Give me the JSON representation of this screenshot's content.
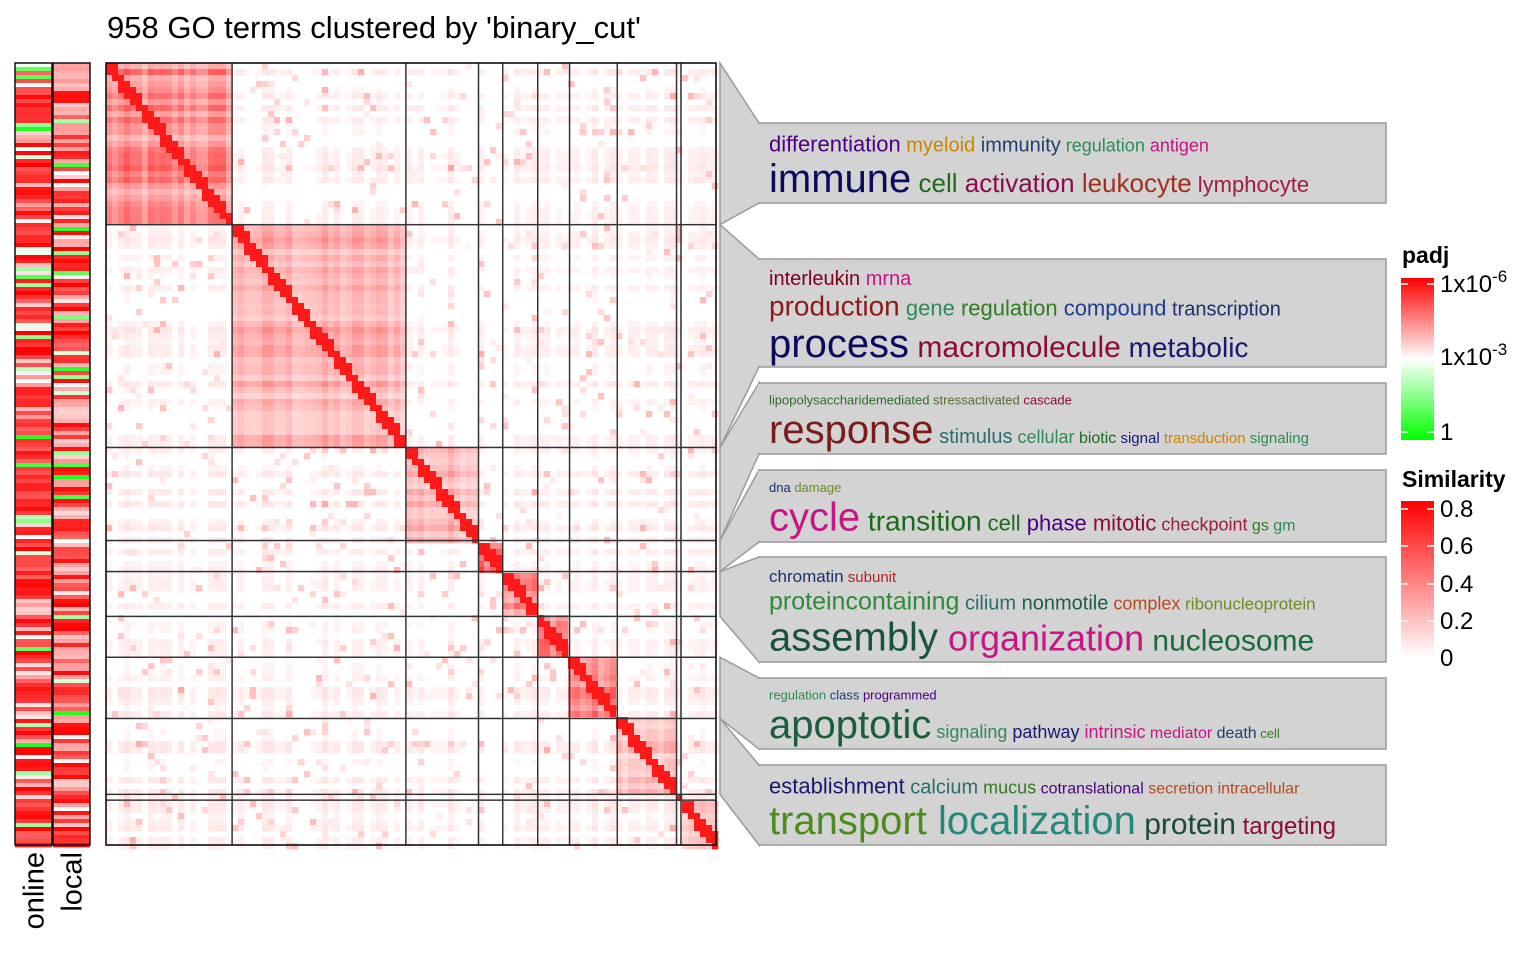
{
  "title": "958 GO terms clustered by 'binary_cut'",
  "colors": {
    "similarity_high": "#ff0000",
    "similarity_low": "#ffffff",
    "padj_high": "#ff0000",
    "padj_mid": "#ffffff",
    "padj_low": "#00ff00",
    "panel_fill": "#d3d3d3",
    "panel_stroke": "#9a9a9a",
    "block_border": "#333333"
  },
  "chart_data": {
    "type": "heatmap",
    "n_terms": 958,
    "clusters": [
      {
        "id": 1,
        "size": 198,
        "mean_within_similarity": 0.55
      },
      {
        "id": 2,
        "size": 273,
        "mean_within_similarity": 0.38
      },
      {
        "id": 3,
        "size": 114,
        "mean_within_similarity": 0.35
      },
      {
        "id": 4,
        "size": 38,
        "mean_within_similarity": 0.8
      },
      {
        "id": 5,
        "size": 55,
        "mean_within_similarity": 0.6
      },
      {
        "id": 6,
        "size": 50,
        "mean_within_similarity": 0.7
      },
      {
        "id": 7,
        "size": 75,
        "mean_within_similarity": 0.55
      },
      {
        "id": 8,
        "size": 93,
        "mean_within_similarity": 0.3
      },
      {
        "id": 9,
        "size": 7,
        "mean_within_similarity": 0.2
      },
      {
        "id": 10,
        "size": 55,
        "mean_within_similarity": 0.25
      }
    ],
    "annotation_columns": [
      {
        "name": "online",
        "legend": "padj"
      },
      {
        "name": "local",
        "legend": "padj"
      }
    ],
    "legends": [
      {
        "title": "padj",
        "labels": [
          {
            "base": "1x10",
            "exp": "-6"
          },
          {
            "base": "1x10",
            "exp": "-3"
          },
          {
            "base": "1",
            "exp": ""
          }
        ]
      },
      {
        "title": "Similarity",
        "labels": [
          "0.8",
          "0.6",
          "0.4",
          "0.2",
          "0"
        ]
      }
    ],
    "word_clouds": [
      {
        "cluster": 1,
        "lines": [
          [
            {
              "t": "differentiation",
              "s": 22,
              "c": "#4b0082"
            },
            {
              "t": "myeloid",
              "s": 20,
              "c": "#cd8500"
            },
            {
              "t": "immunity",
              "s": 20,
              "c": "#1c3f6e"
            },
            {
              "t": "regulation",
              "s": 18,
              "c": "#2e8b57"
            },
            {
              "t": "antigen",
              "s": 18,
              "c": "#c71585"
            }
          ],
          [
            {
              "t": "immune",
              "s": 40,
              "c": "#0b0b5e"
            },
            {
              "t": "cell",
              "s": 26,
              "c": "#1a6b1a"
            },
            {
              "t": "activation",
              "s": 26,
              "c": "#8b0a50"
            },
            {
              "t": "leukocyte",
              "s": 26,
              "c": "#a0301e"
            },
            {
              "t": "lymphocyte",
              "s": 22,
              "c": "#a01c3c"
            }
          ]
        ]
      },
      {
        "cluster": 2,
        "lines": [
          [
            {
              "t": "interleukin",
              "s": 20,
              "c": "#800020"
            },
            {
              "t": "mrna",
              "s": 20,
              "c": "#c71585"
            }
          ],
          [
            {
              "t": "production",
              "s": 28,
              "c": "#8b1a1a"
            },
            {
              "t": "gene",
              "s": 22,
              "c": "#2e8b57"
            },
            {
              "t": "regulation",
              "s": 22,
              "c": "#2f7d1f"
            },
            {
              "t": "compound",
              "s": 22,
              "c": "#1c3f8e"
            },
            {
              "t": "transcription",
              "s": 20,
              "c": "#1c2f6e"
            }
          ],
          [
            {
              "t": "process",
              "s": 40,
              "c": "#0b0b5e"
            },
            {
              "t": "macromolecule",
              "s": 30,
              "c": "#8b0a3c"
            },
            {
              "t": "metabolic",
              "s": 28,
              "c": "#191970"
            }
          ]
        ]
      },
      {
        "cluster": 3,
        "lines": [
          [
            {
              "t": "lipopolysaccharidemediated",
              "s": 13,
              "c": "#2e6b2e"
            },
            {
              "t": "stressactivated",
              "s": 13,
              "c": "#556b2f"
            },
            {
              "t": "cascade",
              "s": 13,
              "c": "#8b0a3c"
            }
          ],
          [
            {
              "t": "response",
              "s": 40,
              "c": "#7d1a1a"
            },
            {
              "t": "stimulus",
              "s": 20,
              "c": "#2a6e6e"
            },
            {
              "t": "cellular",
              "s": 18,
              "c": "#2e8b57"
            },
            {
              "t": "biotic",
              "s": 16,
              "c": "#1a6b1a"
            },
            {
              "t": "signal",
              "s": 15,
              "c": "#191970"
            },
            {
              "t": "transduction",
              "s": 15,
              "c": "#cd8500"
            },
            {
              "t": "signaling",
              "s": 15,
              "c": "#2e8b57"
            }
          ]
        ]
      },
      {
        "cluster": 4,
        "lines": [
          [
            {
              "t": "dna",
              "s": 13,
              "c": "#1c2f6e"
            },
            {
              "t": "damage",
              "s": 13,
              "c": "#6b8e23"
            }
          ],
          [
            {
              "t": "cycle",
              "s": 40,
              "c": "#c71585"
            },
            {
              "t": "transition",
              "s": 28,
              "c": "#1a6b1a"
            },
            {
              "t": "cell",
              "s": 22,
              "c": "#1a6b1a"
            },
            {
              "t": "phase",
              "s": 22,
              "c": "#4b0082"
            },
            {
              "t": "mitotic",
              "s": 22,
              "c": "#8b0a3c"
            },
            {
              "t": "checkpoint",
              "s": 18,
              "c": "#a01c3c"
            },
            {
              "t": "gs",
              "s": 16,
              "c": "#2f7d1f"
            },
            {
              "t": "gm",
              "s": 16,
              "c": "#2e8b57"
            }
          ]
        ]
      },
      {
        "cluster": 5,
        "lines": [
          [
            {
              "t": "chromatin",
              "s": 17,
              "c": "#1c2f6e"
            },
            {
              "t": "subunit",
              "s": 15,
              "c": "#b22222"
            }
          ],
          [
            {
              "t": "proteincontaining",
              "s": 25,
              "c": "#2e8b3a"
            },
            {
              "t": "cilium",
              "s": 20,
              "c": "#2a6e6e"
            },
            {
              "t": "nonmotile",
              "s": 20,
              "c": "#1a5e4e"
            },
            {
              "t": "complex",
              "s": 18,
              "c": "#b8481e"
            },
            {
              "t": "ribonucleoprotein",
              "s": 17,
              "c": "#6b8e23"
            }
          ],
          [
            {
              "t": "assembly",
              "s": 40,
              "c": "#1a5240"
            },
            {
              "t": "organization",
              "s": 36,
              "c": "#c71585"
            },
            {
              "t": "nucleosome",
              "s": 30,
              "c": "#1a6b3a"
            }
          ]
        ]
      },
      {
        "cluster": 6,
        "lines": [
          [
            {
              "t": "regulation",
              "s": 13,
              "c": "#2e8b57"
            },
            {
              "t": "class",
              "s": 13,
              "c": "#1c3f6e"
            },
            {
              "t": "programmed",
              "s": 13,
              "c": "#4b0082"
            }
          ],
          [
            {
              "t": "apoptotic",
              "s": 40,
              "c": "#1a5e3a"
            },
            {
              "t": "signaling",
              "s": 18,
              "c": "#2e8b57"
            },
            {
              "t": "pathway",
              "s": 18,
              "c": "#191970"
            },
            {
              "t": "intrinsic",
              "s": 18,
              "c": "#c71585"
            },
            {
              "t": "mediator",
              "s": 16,
              "c": "#c71585"
            },
            {
              "t": "death",
              "s": 16,
              "c": "#1c3f6e"
            },
            {
              "t": "cell",
              "s": 13,
              "c": "#2f7d1f"
            }
          ]
        ]
      },
      {
        "cluster": 7,
        "lines": [
          [
            {
              "t": "establishment",
              "s": 22,
              "c": "#191970"
            },
            {
              "t": "calcium",
              "s": 20,
              "c": "#2a6e6e"
            },
            {
              "t": "mucus",
              "s": 18,
              "c": "#2f7d1f"
            },
            {
              "t": "cotranslational",
              "s": 16,
              "c": "#4b0082"
            },
            {
              "t": "secretion",
              "s": 16,
              "c": "#b8481e"
            },
            {
              "t": "intracellular",
              "s": 16,
              "c": "#b8481e"
            }
          ],
          [
            {
              "t": "transport",
              "s": 40,
              "c": "#4d8c1a"
            },
            {
              "t": "localization",
              "s": 40,
              "c": "#218a7a"
            },
            {
              "t": "protein",
              "s": 30,
              "c": "#1a4a3a"
            },
            {
              "t": "targeting",
              "s": 24,
              "c": "#8b0a3c"
            }
          ]
        ]
      }
    ]
  }
}
